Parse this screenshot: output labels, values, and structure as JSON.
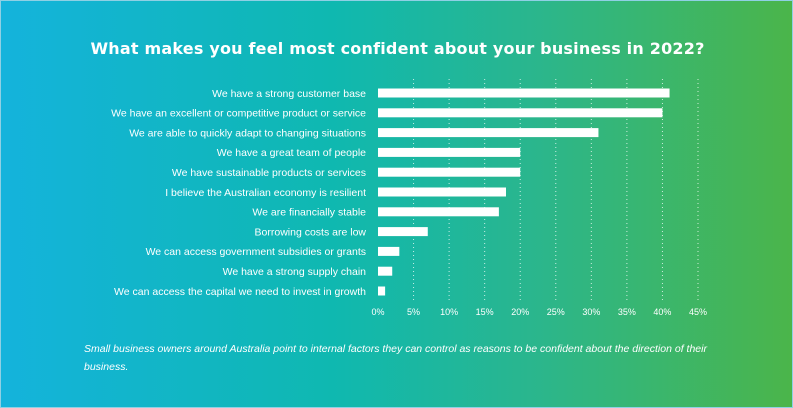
{
  "caption": "Small business owners around Australia point to internal factors they can control as reasons to be confident about the direction of their business.",
  "colors": {
    "bar": "#ffffff",
    "gridline": "#ffffff",
    "background_start": "#14b3dc",
    "background_end": "#4bb54a"
  },
  "chart_data": {
    "type": "bar",
    "orientation": "horizontal",
    "title": "What makes you feel most confident about your business in 2022?",
    "categories": [
      "We have a strong customer base",
      "We have an excellent or competitive product or service",
      "We are able to quickly adapt to changing situations",
      "We have a great team of people",
      "We have sustainable products or services",
      "I believe the Australian economy is resilient",
      "We are financially stable",
      "Borrowing costs are low",
      "We can access government subsidies or grants",
      "We have a strong supply chain",
      "We can access the capital we need to invest in growth"
    ],
    "values": [
      41,
      40,
      31,
      20,
      20,
      18,
      17,
      7,
      3,
      2,
      1
    ],
    "xlim": [
      0,
      45
    ],
    "xticks": [
      "0%",
      "5%",
      "10%",
      "15%",
      "20%",
      "25%",
      "30%",
      "35%",
      "40%",
      "45%"
    ],
    "unit": "%",
    "grid": "vertical dotted",
    "legend": "none"
  }
}
